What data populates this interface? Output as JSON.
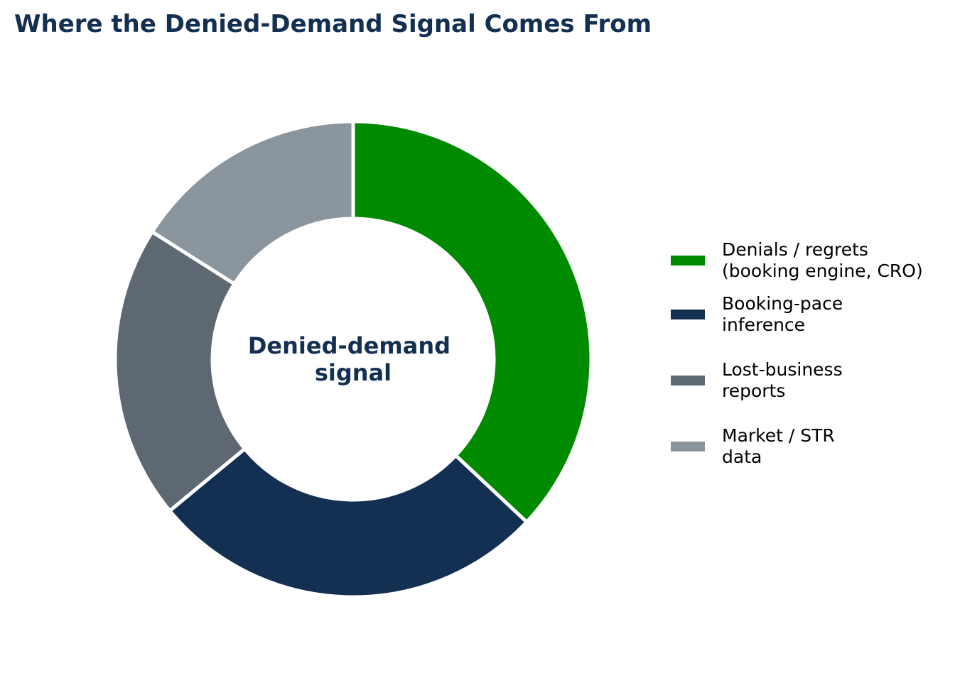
{
  "title": "Where the Denied-Demand Signal Comes From",
  "chart_data": {
    "type": "pie",
    "variant": "donut",
    "title": "Where the Denied-Demand Signal Comes From",
    "center_label": [
      "Denied-demand",
      "signal"
    ],
    "legend_placement": "right",
    "slices": [
      {
        "label": "Denials / regrets\n(booking engine, CRO)",
        "value": 37,
        "color": "#008a00"
      },
      {
        "label": "Booking-pace\ninference",
        "value": 27,
        "color": "#132f52"
      },
      {
        "label": "Lost-business\nreports",
        "value": 20,
        "color": "#5d6872"
      },
      {
        "label": "Market / STR\ndata",
        "value": 16,
        "color": "#8a959e"
      }
    ]
  }
}
